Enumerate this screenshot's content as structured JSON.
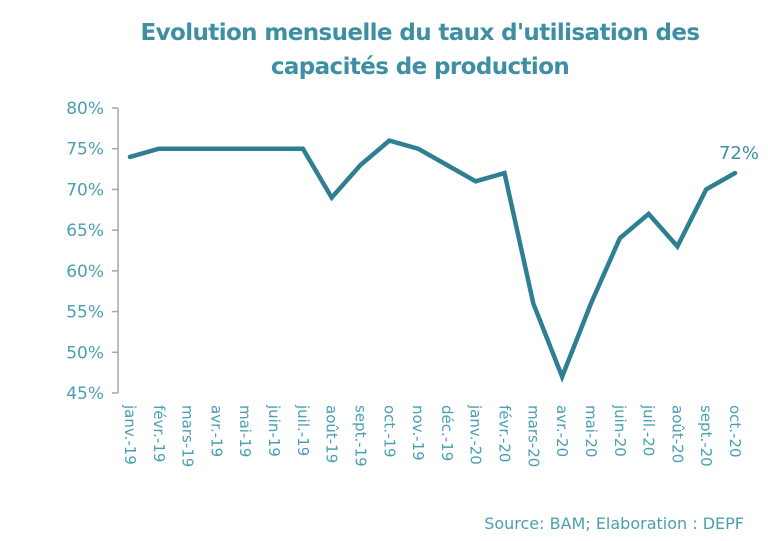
{
  "chart_data": {
    "type": "line",
    "title": "Evolution mensuelle du taux d'utilisation des capacités de production",
    "title_lines": [
      "Evolution mensuelle du taux d'utilisation des",
      "capacités de production"
    ],
    "xlabel": "",
    "ylabel": "",
    "ylim": [
      45,
      80
    ],
    "y_ticks": [
      45,
      50,
      55,
      60,
      65,
      70,
      75,
      80
    ],
    "y_tick_labels": [
      "45%",
      "50%",
      "55%",
      "60%",
      "65%",
      "70%",
      "75%",
      "80%"
    ],
    "grid": false,
    "legend": null,
    "categories": [
      "janv.-19",
      "févr.-19",
      "mars-19",
      "avr.-19",
      "mai-19",
      "juin-19",
      "juil.-19",
      "août-19",
      "sept.-19",
      "oct.-19",
      "nov.-19",
      "déc.-19",
      "janv.-20",
      "févr.-20",
      "mars-20",
      "avr.-20",
      "mai-20",
      "juin-20",
      "juil.-20",
      "août-20",
      "sept.-20",
      "oct.-20"
    ],
    "series": [
      {
        "name": "Taux d'utilisation des capacités de production",
        "color": "#2f7f93",
        "values": [
          74,
          75,
          75,
          75,
          75,
          75,
          75,
          69,
          73,
          76,
          75,
          73,
          71,
          72,
          56,
          47,
          56,
          64,
          67,
          63,
          70,
          72
        ]
      }
    ],
    "annotations": [
      {
        "category": "oct.-20",
        "text": "72%"
      }
    ],
    "source": "Source: BAM; Elaboration : DEPF"
  }
}
